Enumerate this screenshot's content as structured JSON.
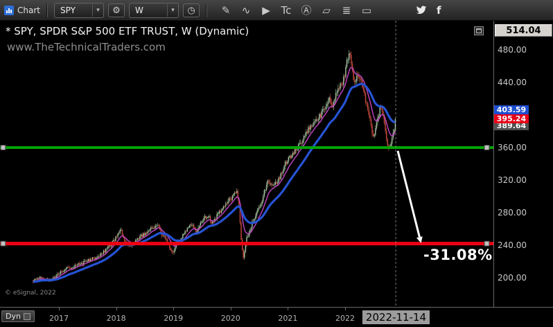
{
  "toolbar": {
    "chart_label": "Chart",
    "symbol_value": "SPY",
    "interval_value": "W",
    "icons": {
      "gear": "⚙",
      "clock": "◷",
      "chevron": "▾",
      "facebook": "f"
    },
    "tools": [
      {
        "name": "draw-pencil-icon",
        "glyph": "✎"
      },
      {
        "name": "trendline-tool-icon",
        "glyph": "∿"
      },
      {
        "name": "playback-icon",
        "glyph": "▶"
      },
      {
        "name": "time-cycles-icon",
        "glyph": "Tc"
      },
      {
        "name": "annotate-text-icon",
        "glyph": "Ⓐ"
      },
      {
        "name": "eraser-icon",
        "glyph": "▱"
      },
      {
        "name": "quote-list-icon",
        "glyph": "≣"
      },
      {
        "name": "chat-icon",
        "glyph": "▭"
      }
    ]
  },
  "chart": {
    "title": "* SPY, SPDR S&P 500 ETF TRUST, W (Dynamic)",
    "watermark": "www.TheTechnicalTraders.com",
    "copyright": "© eSignal, 2022",
    "drawdown_label": "-31.08%",
    "crosshair_date": "2022-11-14",
    "dyn_label": "Dyn"
  },
  "price_axis": {
    "top_value": "514.04",
    "labels": [
      480,
      440,
      360,
      320,
      280,
      240,
      200
    ],
    "badges": [
      {
        "value": 403.59,
        "color": "#1d4ed0",
        "dy": -3,
        "z": 2
      },
      {
        "value": 395.24,
        "color": "#e60017",
        "dy": 0,
        "z": 3
      },
      {
        "value": 389.64,
        "color": "#4f4f4f",
        "dy": 3,
        "z": 1
      }
    ]
  },
  "time_axis": {
    "years": [
      "2017",
      "2018",
      "2019",
      "2020",
      "2021",
      "2022"
    ]
  },
  "chart_data": {
    "type": "candlestick",
    "symbol": "SPY",
    "interval": "weekly",
    "title": "SPY, SPDR S&P 500 ETF TRUST, W (Dynamic)",
    "x_range": [
      2016.55,
      2022.885
    ],
    "y_axis_ticks": [
      200,
      240,
      280,
      320,
      360,
      440,
      480
    ],
    "y_top_value": 514.04,
    "last_close": 395.24,
    "anchors": {
      "t": [
        2016.55,
        2016.7,
        2016.85,
        2016.95,
        2017.0,
        2017.15,
        2017.3,
        2017.5,
        2017.65,
        2017.8,
        2017.95,
        2018.02,
        2018.08,
        2018.15,
        2018.25,
        2018.4,
        2018.55,
        2018.73,
        2018.8,
        2018.88,
        2018.98,
        2019.05,
        2019.2,
        2019.33,
        2019.4,
        2019.5,
        2019.6,
        2019.67,
        2019.75,
        2019.85,
        2019.97,
        2020.05,
        2020.1,
        2020.14,
        2020.18,
        2020.22,
        2020.28,
        2020.35,
        2020.45,
        2020.55,
        2020.65,
        2020.7,
        2020.75,
        2020.85,
        2020.95,
        2021.05,
        2021.15,
        2021.25,
        2021.35,
        2021.45,
        2021.55,
        2021.65,
        2021.72,
        2021.78,
        2021.85,
        2021.95,
        2022.0,
        2022.04,
        2022.08,
        2022.15,
        2022.24,
        2022.32,
        2022.42,
        2022.5,
        2022.57,
        2022.62,
        2022.68,
        2022.75,
        2022.8,
        2022.85,
        2022.885
      ],
      "close": [
        196,
        200,
        197,
        202,
        206,
        212,
        215,
        221,
        225,
        233,
        245,
        252,
        259,
        243,
        240,
        249,
        257,
        266,
        252,
        247,
        230,
        240,
        255,
        267,
        256,
        270,
        277,
        268,
        275,
        284,
        296,
        300,
        306,
        296,
        252,
        222,
        248,
        262,
        281,
        295,
        322,
        316,
        312,
        322,
        340,
        350,
        358,
        368,
        383,
        389,
        398,
        410,
        420,
        412,
        430,
        440,
        452,
        468,
        477,
        440,
        450,
        430,
        398,
        372,
        395,
        414,
        392,
        360,
        366,
        380,
        395.24
      ]
    },
    "moving_averages": [
      {
        "period": 10,
        "color": "#c445c8",
        "width": 1.4
      },
      {
        "period": 30,
        "color": "#2653d4",
        "width": 3.2
      }
    ],
    "levels": [
      {
        "price": 360,
        "color": "#00a303",
        "thickness": 4
      },
      {
        "price": 242,
        "color": "#ef0013",
        "thickness": 5
      }
    ],
    "annotation": {
      "text": "-31.08%",
      "from": {
        "t": 2022.92,
        "price": 356
      },
      "to": {
        "t": 2023.3,
        "price": 250
      }
    },
    "crosshair": {
      "date": "2022-11-14",
      "t": 2022.885
    }
  }
}
